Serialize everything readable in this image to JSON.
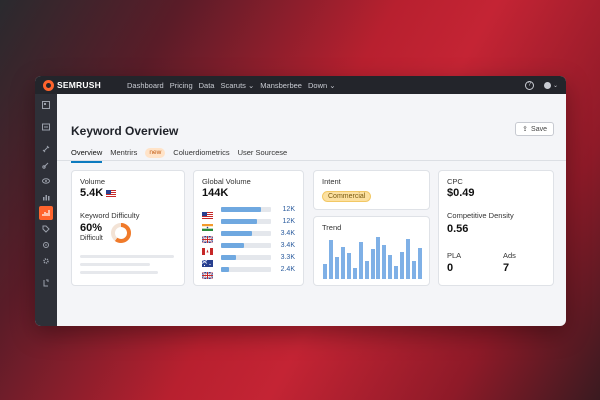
{
  "app": {
    "brand": "SEMRUSH"
  },
  "nav": {
    "items": [
      "Dashboard",
      "Pricing",
      "Data",
      "Scaruts ⌄",
      "Mansberbee",
      "Down ⌄"
    ]
  },
  "topbar": {
    "help_glyph": "?",
    "user_glyph": "⌄"
  },
  "sidebar": {
    "icons": [
      "dashboard-icon",
      "inbox-icon",
      "link-icon",
      "link-alt-icon",
      "eye-icon",
      "bar-chart-icon",
      "analytics-icon",
      "tag-icon",
      "settings-icon",
      "gear-icon",
      "export-icon"
    ],
    "active_index": 6
  },
  "page": {
    "title": "Keyword Overview",
    "save_label": "Save",
    "save_glyph": "⇪"
  },
  "tabs": [
    {
      "label": "Overview",
      "active": true
    },
    {
      "label": "Mentrirs",
      "active": false
    },
    {
      "label": "new",
      "badge": true
    },
    {
      "label": "Coluerdiometrics",
      "active": false
    },
    {
      "label": "User Sourcese",
      "active": false
    }
  ],
  "volume_card": {
    "volume_label": "Volume",
    "volume_value": "5.4K",
    "kd_label": "Keyword Difficulty",
    "kd_value": "60%",
    "kd_text": "Difficult",
    "kd_fraction": 0.6,
    "kd_color": "#f07a2a"
  },
  "global_volume": {
    "label": "Global Volume",
    "value": "144K",
    "rows": [
      {
        "country": "US",
        "fill": 0.8,
        "value": "12K"
      },
      {
        "country": "IN",
        "fill": 0.72,
        "value": "12K"
      },
      {
        "country": "UK",
        "fill": 0.62,
        "value": "3.4K"
      },
      {
        "country": "CA",
        "fill": 0.45,
        "value": "3.4K"
      },
      {
        "country": "AU",
        "fill": 0.3,
        "value": "3.3K"
      },
      {
        "country": "UK2",
        "fill": 0.15,
        "value": "2.4K"
      }
    ]
  },
  "intent": {
    "label": "Intent",
    "value": "Commercial"
  },
  "trend": {
    "label": "Trend",
    "bars": [
      0.35,
      0.88,
      0.5,
      0.72,
      0.58,
      0.25,
      0.85,
      0.4,
      0.68,
      0.95,
      0.78,
      0.55,
      0.3,
      0.62,
      0.9,
      0.42,
      0.7
    ]
  },
  "cpc_card": {
    "cpc_label": "CPC",
    "cpc_value": "$0.49",
    "density_label": "Competitive Density",
    "density_value": "0.56",
    "pla_label": "PLA",
    "pla_value": "0",
    "ads_label": "Ads",
    "ads_value": "7"
  },
  "colors": {
    "accent": "#ff642d",
    "bar": "#6fa8e0",
    "link": "#0c7bbf"
  }
}
